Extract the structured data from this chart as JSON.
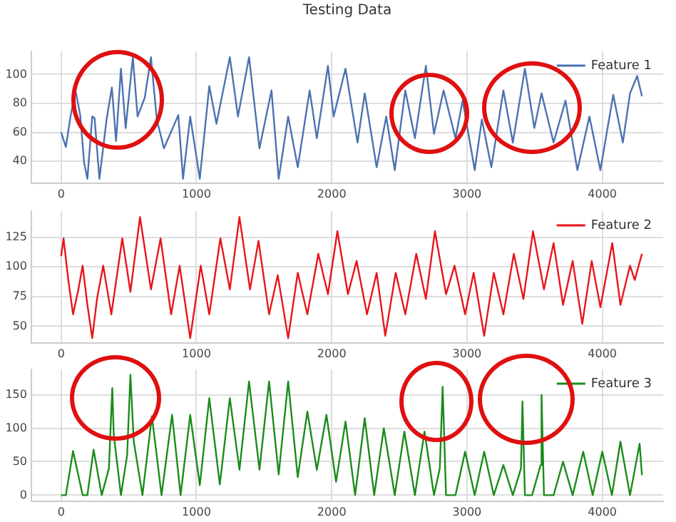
{
  "chart_data": [
    {
      "type": "line",
      "title": "Testing Data",
      "x": [
        0,
        35,
        71,
        106,
        141,
        170,
        194,
        230,
        247,
        283,
        336,
        375,
        406,
        442,
        477,
        530,
        565,
        618,
        664,
        707,
        760,
        866,
        901,
        954,
        1025,
        1095,
        1148,
        1247,
        1307,
        1389,
        1466,
        1555,
        1608,
        1678,
        1749,
        1837,
        1890,
        1972,
        2014,
        2102,
        2191,
        2244,
        2332,
        2403,
        2466,
        2544,
        2615,
        2696,
        2756,
        2827,
        2915,
        2968,
        3057,
        3110,
        3180,
        3269,
        3339,
        3428,
        3498,
        3551,
        3640,
        3728,
        3816,
        3905,
        3986,
        4081,
        4152,
        4205,
        4258,
        4293
      ],
      "series": [
        {
          "name": "Feature 1",
          "color": "#4c72b0",
          "values": [
            60,
            50,
            72,
            89,
            72,
            39,
            28,
            71,
            70,
            28,
            69,
            91,
            54,
            104,
            63,
            112,
            71,
            84,
            112,
            69,
            49,
            72,
            28,
            71,
            28,
            92,
            66,
            112,
            71,
            112,
            49,
            89,
            28,
            71,
            36,
            89,
            56,
            106,
            71,
            104,
            53,
            87,
            36,
            71,
            34,
            89,
            56,
            106,
            59,
            89,
            56,
            82,
            34,
            69,
            36,
            89,
            53,
            104,
            63,
            87,
            53,
            82,
            34,
            71,
            34,
            86,
            53,
            87,
            99,
            85
          ]
        }
      ],
      "xlim": [
        -220,
        4450
      ],
      "xticks": [
        0,
        1000,
        2000,
        3000,
        4000
      ],
      "ylim": [
        25,
        116
      ],
      "yticks": [
        40,
        60,
        80,
        100
      ],
      "grid": true,
      "legend": "top right"
    },
    {
      "type": "line",
      "x": [
        0,
        18,
        53,
        88,
        124,
        159,
        194,
        230,
        265,
        311,
        371,
        452,
        512,
        583,
        664,
        735,
        813,
        876,
        954,
        1032,
        1095,
        1177,
        1247,
        1318,
        1396,
        1459,
        1537,
        1601,
        1678,
        1749,
        1820,
        1901,
        1972,
        2042,
        2120,
        2184,
        2261,
        2332,
        2396,
        2473,
        2544,
        2625,
        2696,
        2763,
        2845,
        2908,
        2986,
        3049,
        3127,
        3198,
        3269,
        3346,
        3417,
        3488,
        3569,
        3640,
        3710,
        3781,
        3852,
        3922,
        3986,
        4074,
        4134,
        4205,
        4240,
        4293
      ],
      "series": [
        {
          "name": "Feature 2",
          "color": "#e8151b",
          "values": [
            109,
            124,
            89,
            60,
            79,
            101,
            68,
            40,
            73,
            101,
            60,
            124,
            79,
            142,
            81,
            124,
            60,
            101,
            40,
            101,
            60,
            124,
            81,
            142,
            81,
            122,
            60,
            93,
            40,
            95,
            60,
            111,
            77,
            130,
            77,
            105,
            60,
            95,
            42,
            95,
            60,
            111,
            73,
            130,
            77,
            101,
            60,
            95,
            42,
            95,
            60,
            111,
            73,
            130,
            81,
            120,
            68,
            105,
            52,
            105,
            66,
            120,
            68,
            101,
            89,
            111
          ]
        }
      ],
      "xlim": [
        -220,
        4450
      ],
      "xticks": [
        0,
        1000,
        2000,
        3000,
        4000
      ],
      "ylim": [
        36,
        147
      ],
      "yticks": [
        50,
        75,
        100,
        125
      ],
      "grid": true,
      "legend": "top right"
    },
    {
      "type": "line",
      "x": [
        0,
        35,
        88,
        159,
        194,
        240,
        300,
        353,
        378,
        389,
        442,
        488,
        512,
        537,
        601,
        671,
        742,
        820,
        883,
        954,
        1025,
        1095,
        1173,
        1247,
        1318,
        1389,
        1466,
        1537,
        1608,
        1678,
        1749,
        1820,
        1890,
        1961,
        2032,
        2102,
        2173,
        2244,
        2314,
        2385,
        2466,
        2537,
        2615,
        2686,
        2756,
        2799,
        2820,
        2845,
        2915,
        2986,
        3057,
        3127,
        3198,
        3269,
        3339,
        3399,
        3410,
        3428,
        3481,
        3544,
        3551,
        3569,
        3640,
        3710,
        3781,
        3859,
        3929,
        4000,
        4071,
        4134,
        4205,
        4276,
        4293
      ],
      "series": [
        {
          "name": "Feature 3",
          "color": "#1a8c1a",
          "values": [
            0,
            0,
            66,
            0,
            0,
            68,
            0,
            40,
            160,
            90,
            0,
            60,
            180,
            80,
            0,
            118,
            0,
            120,
            0,
            120,
            15,
            145,
            16,
            145,
            38,
            170,
            38,
            170,
            31,
            170,
            27,
            125,
            38,
            120,
            20,
            110,
            0,
            115,
            0,
            100,
            0,
            95,
            0,
            95,
            0,
            40,
            162,
            0,
            0,
            65,
            0,
            65,
            0,
            45,
            0,
            40,
            140,
            0,
            0,
            45,
            150,
            0,
            0,
            50,
            0,
            65,
            0,
            65,
            0,
            80,
            0,
            77,
            30
          ]
        }
      ],
      "xlim": [
        -220,
        4450
      ],
      "xticks": [
        0,
        1000,
        2000,
        3000,
        4000
      ],
      "ylim": [
        -9,
        188
      ],
      "yticks": [
        0,
        50,
        100,
        150
      ],
      "grid": true,
      "legend": "top right"
    }
  ]
}
